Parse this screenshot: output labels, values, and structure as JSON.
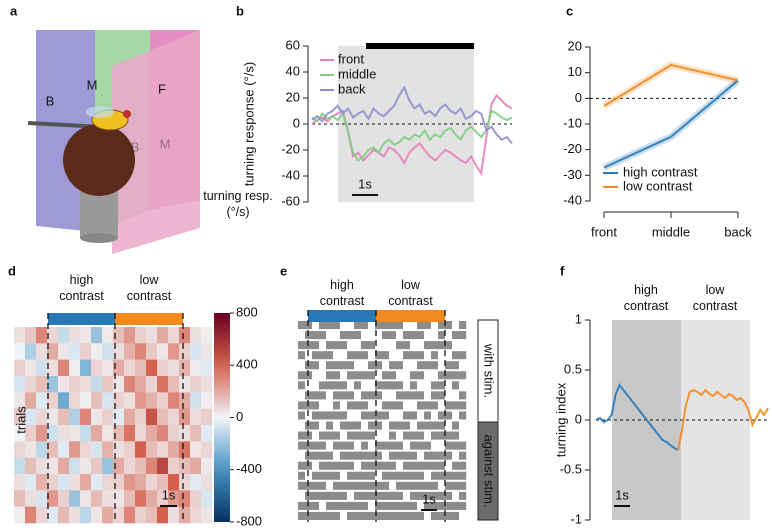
{
  "panels": [
    "a",
    "b",
    "c",
    "d",
    "e",
    "f"
  ],
  "illustration": {
    "labels": [
      "B",
      "M",
      "F",
      "B",
      "M"
    ]
  },
  "chart_data": [
    {
      "type": "line",
      "ylabel": "turning response (°/s)",
      "ylim": [
        -60,
        60
      ],
      "yticks": [
        -60,
        -40,
        -20,
        0,
        20,
        40,
        60
      ],
      "zero_line": true,
      "scale_bar": "1s",
      "series": [
        {
          "name": "front",
          "color": "#e77fb8",
          "values": [
            0,
            3,
            5,
            2,
            6,
            8,
            10,
            -5,
            -25,
            -22,
            -28,
            -24,
            -20,
            -22,
            -25,
            -18,
            -20,
            -24,
            -30,
            -22,
            -18,
            -15,
            -20,
            -25,
            -28,
            -24,
            -20,
            -22,
            -25,
            -28,
            -30,
            -25,
            -32,
            -38,
            -10,
            15,
            22,
            18,
            14,
            12
          ]
        },
        {
          "name": "middle",
          "color": "#7fcc7f",
          "values": [
            5,
            2,
            8,
            4,
            6,
            3,
            8,
            -5,
            -22,
            -28,
            -25,
            -20,
            -18,
            -22,
            -15,
            -12,
            -16,
            -14,
            -10,
            -12,
            -8,
            -10,
            -5,
            -12,
            -8,
            -10,
            -5,
            -3,
            -8,
            -12,
            -5,
            -2,
            -6,
            -10,
            -5,
            10,
            8,
            5,
            3,
            5
          ]
        },
        {
          "name": "back",
          "color": "#8f8fd0",
          "values": [
            3,
            6,
            2,
            8,
            10,
            14,
            8,
            12,
            5,
            8,
            10,
            4,
            12,
            8,
            6,
            10,
            14,
            22,
            28,
            18,
            12,
            15,
            8,
            10,
            6,
            12,
            15,
            10,
            8,
            12,
            4,
            6,
            10,
            8,
            -5,
            -2,
            -8,
            -12,
            -10,
            -15
          ]
        }
      ]
    },
    {
      "type": "line",
      "categories": [
        "front",
        "middle",
        "back"
      ],
      "category_colors": [
        "#e77fb8",
        "#7fcc7f",
        "#8f8fd0"
      ],
      "ylim": [
        -40,
        20
      ],
      "yticks": [
        -40,
        -30,
        -20,
        -10,
        0,
        10,
        20
      ],
      "zero_line": true,
      "series": [
        {
          "name": "high contrast",
          "color": "#2878b5",
          "values": [
            -27,
            -15,
            7
          ]
        },
        {
          "name": "low contrast",
          "color": "#f28a1f",
          "values": [
            -3,
            13,
            7
          ]
        }
      ]
    },
    {
      "type": "heatmap",
      "ylabel": "trials",
      "groups": [
        "high contrast",
        "low contrast"
      ],
      "group_colors": [
        "#2878b5",
        "#f28a1f"
      ],
      "colorbar_label": "turning resp. (°/s)",
      "clim": [
        -800,
        800
      ],
      "cticks": [
        -800,
        -400,
        0,
        400,
        800
      ],
      "scale_bar": "1s",
      "values": [
        [
          50,
          120,
          300,
          80,
          -100,
          60,
          40,
          -200,
          30,
          150,
          250,
          100,
          60,
          200,
          80,
          300,
          50,
          20
        ],
        [
          0,
          -150,
          60,
          200,
          40,
          -50,
          100,
          20,
          -80,
          60,
          180,
          300,
          120,
          40,
          250,
          100,
          -60,
          40
        ],
        [
          100,
          40,
          -80,
          60,
          300,
          20,
          -250,
          80,
          40,
          200,
          80,
          150,
          400,
          100,
          60,
          180,
          30,
          -40
        ],
        [
          -60,
          80,
          150,
          -200,
          40,
          100,
          60,
          -100,
          120,
          40,
          300,
          200,
          80,
          350,
          150,
          40,
          100,
          60
        ],
        [
          40,
          200,
          -40,
          100,
          -300,
          80,
          20,
          150,
          -60,
          100,
          60,
          250,
          180,
          100,
          300,
          200,
          -80,
          20
        ],
        [
          120,
          -60,
          80,
          40,
          150,
          -150,
          300,
          40,
          100,
          -40,
          200,
          100,
          450,
          150,
          80,
          250,
          60,
          100
        ],
        [
          0,
          100,
          250,
          -80,
          60,
          40,
          -100,
          200,
          40,
          150,
          350,
          80,
          200,
          300,
          100,
          60,
          150,
          -40
        ],
        [
          80,
          40,
          -120,
          150,
          -40,
          250,
          80,
          -60,
          180,
          60,
          100,
          400,
          150,
          80,
          200,
          350,
          40,
          80
        ],
        [
          -100,
          150,
          60,
          40,
          200,
          -80,
          40,
          120,
          -200,
          200,
          80,
          150,
          300,
          500,
          100,
          150,
          200,
          30
        ],
        [
          60,
          -40,
          180,
          100,
          -60,
          60,
          200,
          -40,
          80,
          100,
          250,
          200,
          80,
          150,
          400,
          80,
          -40,
          60
        ],
        [
          150,
          60,
          -60,
          250,
          100,
          -200,
          40,
          160,
          60,
          40,
          150,
          350,
          200,
          100,
          250,
          300,
          100,
          -60
        ],
        [
          20,
          300,
          80,
          -40,
          160,
          60,
          -120,
          40,
          200,
          80,
          300,
          100,
          150,
          400,
          60,
          200,
          80,
          40
        ]
      ]
    },
    {
      "type": "raster",
      "groups": [
        "high contrast",
        "low contrast"
      ],
      "group_colors": [
        "#2878b5",
        "#f28a1f"
      ],
      "side_labels": [
        "with stim.",
        "against stim."
      ],
      "scale_bar": "1s",
      "values": [
        [
          1,
          1,
          0,
          1,
          1,
          1,
          0,
          0,
          1,
          1,
          0,
          1,
          1,
          1,
          1,
          0,
          0,
          1,
          1,
          0,
          1,
          1,
          0,
          1
        ],
        [
          0,
          1,
          1,
          1,
          0,
          0,
          1,
          1,
          1,
          0,
          0,
          0,
          1,
          1,
          0,
          1,
          1,
          1,
          0,
          0,
          1,
          0,
          1,
          1
        ],
        [
          1,
          1,
          1,
          0,
          1,
          1,
          1,
          0,
          0,
          1,
          1,
          0,
          0,
          0,
          1,
          1,
          0,
          0,
          1,
          1,
          1,
          1,
          0,
          0
        ],
        [
          1,
          0,
          1,
          1,
          1,
          0,
          0,
          1,
          1,
          1,
          0,
          1,
          1,
          0,
          0,
          1,
          1,
          1,
          0,
          1,
          0,
          0,
          1,
          1
        ],
        [
          0,
          1,
          1,
          0,
          1,
          1,
          1,
          1,
          0,
          0,
          1,
          1,
          0,
          1,
          1,
          0,
          0,
          1,
          1,
          1,
          0,
          1,
          1,
          0
        ],
        [
          1,
          1,
          0,
          0,
          1,
          1,
          0,
          1,
          1,
          1,
          1,
          0,
          1,
          1,
          0,
          0,
          1,
          1,
          0,
          0,
          1,
          1,
          1,
          1
        ],
        [
          1,
          0,
          0,
          1,
          1,
          1,
          1,
          0,
          1,
          0,
          0,
          1,
          1,
          1,
          1,
          0,
          1,
          0,
          0,
          1,
          1,
          0,
          1,
          0
        ],
        [
          0,
          1,
          1,
          1,
          0,
          1,
          1,
          1,
          0,
          1,
          1,
          1,
          0,
          0,
          1,
          1,
          1,
          1,
          0,
          1,
          1,
          0,
          0,
          1
        ],
        [
          1,
          1,
          1,
          0,
          0,
          1,
          0,
          1,
          1,
          1,
          0,
          0,
          1,
          1,
          1,
          0,
          0,
          1,
          1,
          1,
          0,
          1,
          1,
          1
        ],
        [
          1,
          0,
          1,
          1,
          1,
          1,
          1,
          0,
          0,
          1,
          1,
          1,
          1,
          0,
          0,
          1,
          1,
          0,
          1,
          0,
          1,
          1,
          0,
          1
        ],
        [
          0,
          1,
          1,
          0,
          1,
          0,
          1,
          1,
          1,
          0,
          1,
          1,
          0,
          1,
          1,
          1,
          0,
          1,
          1,
          1,
          1,
          0,
          1,
          0
        ],
        [
          1,
          1,
          0,
          1,
          1,
          1,
          0,
          1,
          1,
          1,
          1,
          0,
          0,
          1,
          0,
          1,
          1,
          1,
          0,
          1,
          1,
          1,
          1,
          0
        ],
        [
          1,
          1,
          1,
          1,
          0,
          1,
          1,
          1,
          0,
          1,
          0,
          1,
          1,
          1,
          1,
          0,
          1,
          1,
          1,
          0,
          0,
          1,
          1,
          1
        ],
        [
          0,
          1,
          1,
          1,
          1,
          0,
          1,
          1,
          1,
          1,
          1,
          1,
          0,
          1,
          1,
          1,
          1,
          0,
          1,
          1,
          1,
          1,
          0,
          1
        ],
        [
          1,
          1,
          0,
          1,
          1,
          1,
          1,
          1,
          0,
          1,
          1,
          1,
          1,
          1,
          0,
          1,
          1,
          1,
          1,
          1,
          1,
          0,
          1,
          1
        ],
        [
          1,
          0,
          1,
          1,
          1,
          1,
          0,
          1,
          1,
          1,
          1,
          0,
          1,
          1,
          1,
          1,
          1,
          1,
          0,
          1,
          1,
          1,
          1,
          1
        ],
        [
          1,
          1,
          1,
          1,
          0,
          1,
          1,
          1,
          1,
          1,
          1,
          1,
          1,
          0,
          1,
          1,
          1,
          1,
          1,
          1,
          0,
          1,
          1,
          1
        ],
        [
          0,
          1,
          1,
          1,
          1,
          1,
          1,
          0,
          1,
          1,
          1,
          1,
          1,
          1,
          1,
          0,
          1,
          1,
          1,
          1,
          1,
          1,
          0,
          1
        ],
        [
          1,
          1,
          1,
          0,
          1,
          1,
          1,
          1,
          1,
          1,
          0,
          1,
          1,
          1,
          1,
          1,
          1,
          0,
          1,
          1,
          1,
          1,
          1,
          1
        ],
        [
          1,
          1,
          1,
          1,
          1,
          1,
          0,
          1,
          1,
          1,
          1,
          1,
          1,
          1,
          1,
          1,
          1,
          1,
          0,
          1,
          1,
          1,
          1,
          0
        ]
      ]
    },
    {
      "type": "line",
      "ylabel": "turning index",
      "ylim": [
        -1,
        1
      ],
      "yticks": [
        -1,
        -0.5,
        0,
        0.5,
        1
      ],
      "zero_line": true,
      "scale_bar": "1s",
      "series": [
        {
          "name": "high contrast",
          "color": "#2878b5",
          "values": [
            0,
            0.02,
            -0.02,
            0,
            0.05,
            0.25,
            0.35,
            0.3,
            0.25,
            0.2,
            0.15,
            0.1,
            0.05,
            0,
            -0.05,
            -0.1,
            -0.15,
            -0.2,
            -0.22,
            -0.25,
            -0.28,
            -0.3,
            null,
            null,
            null,
            null,
            null,
            null,
            null,
            null,
            null,
            null,
            null,
            null,
            null,
            null,
            null,
            null,
            null,
            null,
            null,
            null,
            null,
            null,
            null
          ]
        },
        {
          "name": "low contrast",
          "color": "#f28a1f",
          "values": [
            null,
            null,
            null,
            null,
            null,
            null,
            null,
            null,
            null,
            null,
            null,
            null,
            null,
            null,
            null,
            null,
            null,
            null,
            null,
            null,
            null,
            -0.3,
            -0.1,
            0.15,
            0.28,
            0.3,
            0.28,
            0.25,
            0.3,
            0.26,
            0.24,
            0.28,
            0.25,
            0.22,
            0.26,
            0.24,
            0.2,
            0.22,
            0.18,
            0.1,
            -0.05,
            0.02,
            0.1,
            0.05,
            0.12
          ]
        }
      ]
    }
  ]
}
